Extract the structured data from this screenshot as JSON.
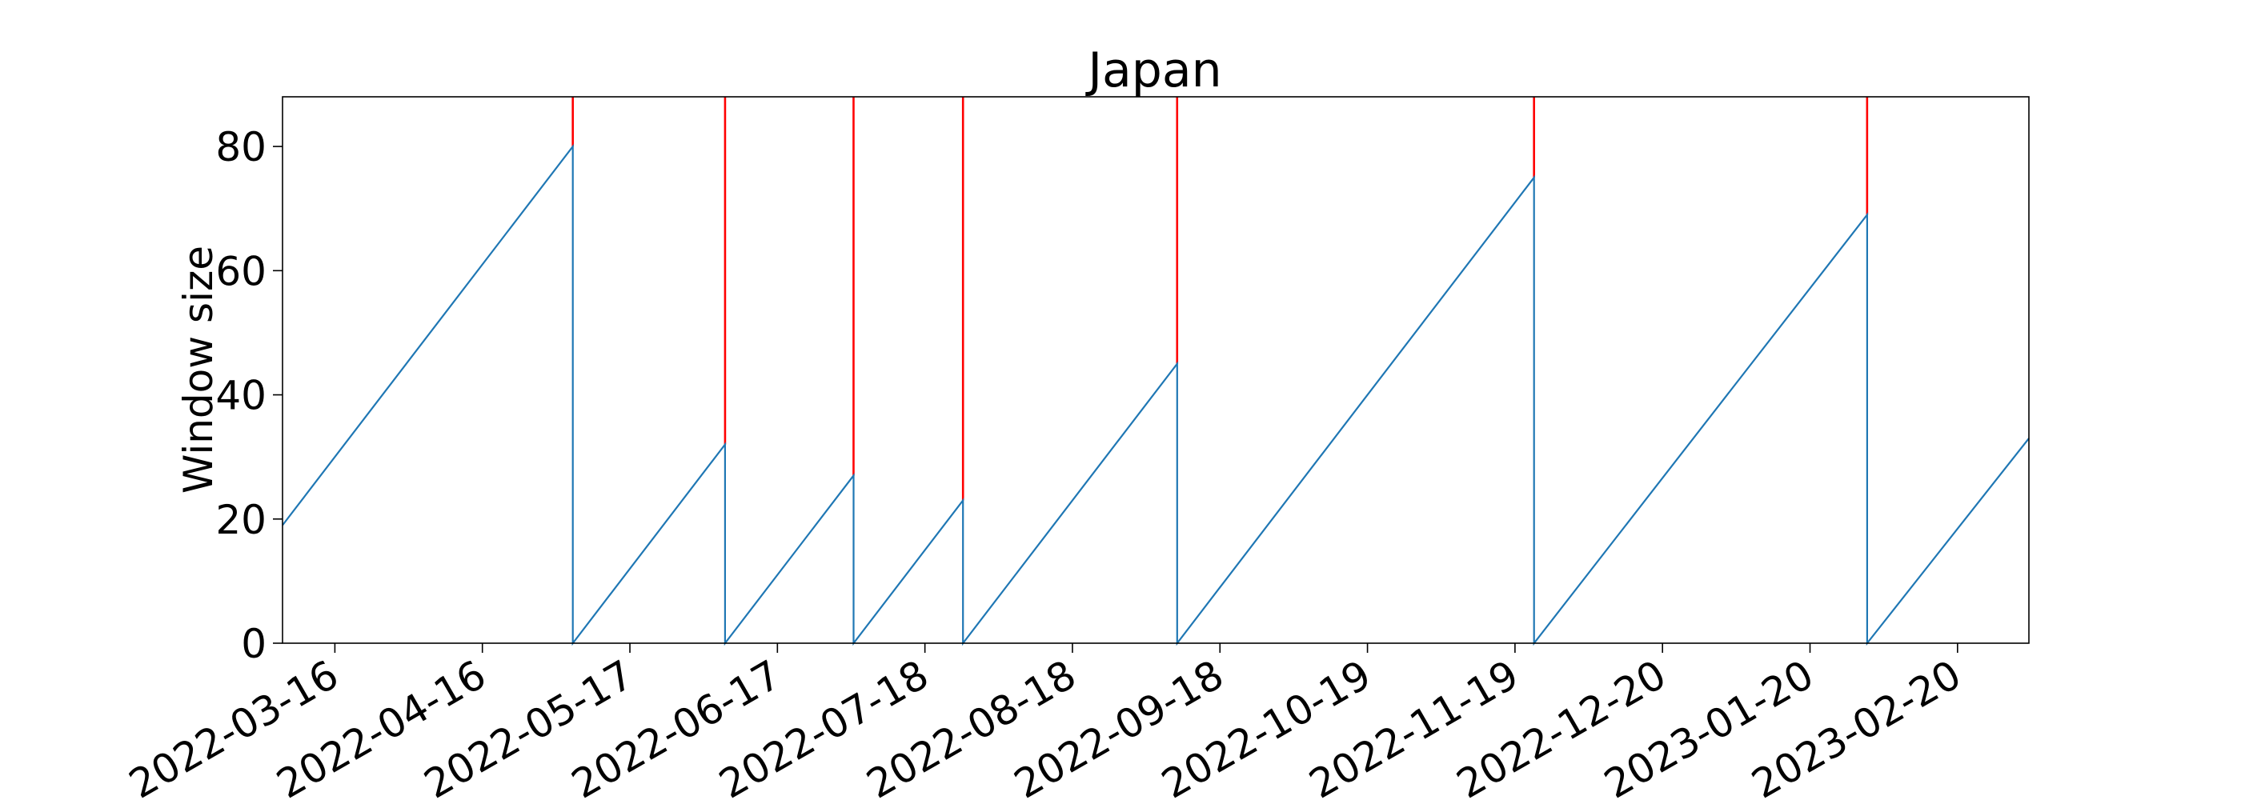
{
  "chart_data": {
    "type": "line",
    "title": "Japan",
    "xlabel": "",
    "ylabel": "Window size",
    "x_axis_type": "date",
    "xlim": [
      "2022-03-05",
      "2023-03-07"
    ],
    "ylim": [
      0,
      88
    ],
    "yticks": [
      0,
      20,
      40,
      60,
      80
    ],
    "xticks": [
      "2022-03-16",
      "2022-04-16",
      "2022-05-17",
      "2022-06-17",
      "2022-07-18",
      "2022-08-18",
      "2022-09-18",
      "2022-10-19",
      "2022-11-19",
      "2022-12-20",
      "2023-01-20",
      "2023-02-20"
    ],
    "grid": false,
    "colors": {
      "series": "#1f77b4",
      "change_points": "#ff0000",
      "axes": "#000000"
    },
    "series": [
      {
        "x": [
          "2022-03-05",
          "2022-05-05",
          "2022-05-05",
          "2022-06-06",
          "2022-06-06",
          "2022-07-03",
          "2022-07-03",
          "2022-07-26",
          "2022-07-26",
          "2022-09-09",
          "2022-09-09",
          "2022-11-23",
          "2022-11-23",
          "2023-02-01",
          "2023-02-01",
          "2023-03-07"
        ],
        "y": [
          19,
          80,
          0,
          32,
          0,
          27,
          0,
          23,
          0,
          45,
          0,
          75,
          0,
          69,
          0,
          33
        ]
      }
    ],
    "change_points": [
      {
        "x": "2022-05-05",
        "y_from": 80
      },
      {
        "x": "2022-06-06",
        "y_from": 32
      },
      {
        "x": "2022-07-03",
        "y_from": 27
      },
      {
        "x": "2022-07-26",
        "y_from": 23
      },
      {
        "x": "2022-09-09",
        "y_from": 45
      },
      {
        "x": "2022-11-23",
        "y_from": 75
      },
      {
        "x": "2023-02-01",
        "y_from": 69
      }
    ]
  }
}
